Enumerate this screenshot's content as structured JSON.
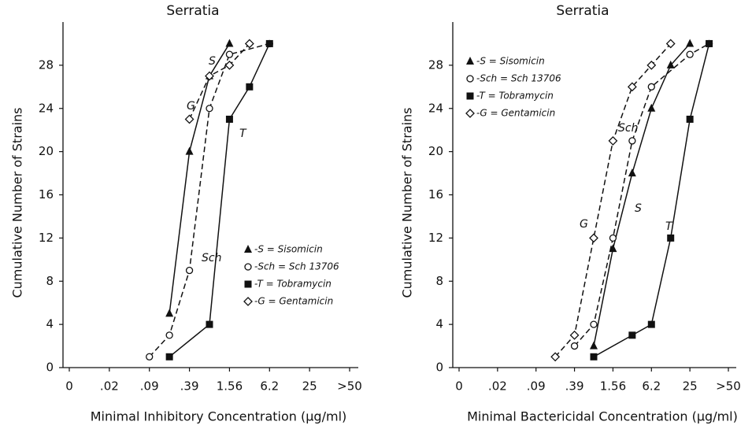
{
  "chart_data": [
    {
      "type": "line",
      "title": "Serratia",
      "xlabel": "Minimal Inhibitory Concentration (μg/ml)",
      "ylabel": "Cumulative Number of Strains",
      "xlim": [
        0,
        14
      ],
      "xticks": [
        {
          "value": 0,
          "label": "0"
        },
        {
          "value": 2,
          "label": ".02"
        },
        {
          "value": 4,
          "label": ".09"
        },
        {
          "value": 6,
          "label": ".39"
        },
        {
          "value": 8,
          "label": "1.56"
        },
        {
          "value": 10,
          "label": "6.2"
        },
        {
          "value": 12,
          "label": "25"
        },
        {
          "value": 14,
          "label": ">50"
        }
      ],
      "ylim": [
        0,
        32
      ],
      "yticks": [
        0,
        4,
        8,
        12,
        16,
        20,
        24,
        28
      ],
      "legend": "lower right",
      "series": [
        {
          "name": "-S = Sisomicin",
          "label": "S",
          "marker": "triangle",
          "dash": false,
          "color": "#111111",
          "x": [
            5,
            6,
            7,
            8
          ],
          "values": [
            5,
            20,
            27,
            30
          ]
        },
        {
          "name": "-Sch = Sch 13706",
          "label": "Sch",
          "marker": "circle",
          "dash": true,
          "color": "#111111",
          "x": [
            4,
            5,
            6,
            7,
            8,
            10
          ],
          "values": [
            1,
            3,
            9,
            24,
            29,
            30
          ]
        },
        {
          "name": "-T = Tobramycin",
          "label": "T",
          "marker": "square",
          "dash": false,
          "color": "#111111",
          "x": [
            5,
            7,
            8,
            9,
            10
          ],
          "values": [
            1,
            4,
            23,
            26,
            30
          ]
        },
        {
          "name": "-G = Gentamicin",
          "label": "G",
          "marker": "diamond",
          "dash": true,
          "color": "#111111",
          "x": [
            6,
            7,
            8,
            9
          ],
          "values": [
            23,
            27,
            28,
            30
          ]
        }
      ]
    },
    {
      "type": "line",
      "title": "Serratia",
      "xlabel": "Minimal Bactericidal Concentration (μg/ml)",
      "ylabel": "Cumulative Number of Strains",
      "xlim": [
        0,
        14
      ],
      "xticks": [
        {
          "value": 0,
          "label": "0"
        },
        {
          "value": 2,
          "label": ".02"
        },
        {
          "value": 4,
          "label": ".09"
        },
        {
          "value": 6,
          "label": ".39"
        },
        {
          "value": 8,
          "label": "1.56"
        },
        {
          "value": 10,
          "label": "6.2"
        },
        {
          "value": 12,
          "label": "25"
        },
        {
          "value": 14,
          "label": ">50"
        }
      ],
      "ylim": [
        0,
        32
      ],
      "yticks": [
        0,
        4,
        8,
        12,
        16,
        20,
        24,
        28
      ],
      "legend": "upper left",
      "series": [
        {
          "name": "-S = Sisomicin",
          "label": "S",
          "marker": "triangle",
          "dash": false,
          "color": "#111111",
          "x": [
            7,
            8,
            9,
            10,
            11,
            12
          ],
          "values": [
            2,
            11,
            18,
            24,
            28,
            30
          ]
        },
        {
          "name": "-Sch = Sch 13706",
          "label": "Sch",
          "marker": "circle",
          "dash": true,
          "color": "#111111",
          "x": [
            6,
            7,
            8,
            9,
            10,
            12,
            13
          ],
          "values": [
            2,
            4,
            12,
            21,
            26,
            29,
            30
          ]
        },
        {
          "name": "-T = Tobramycin",
          "label": "T",
          "marker": "square",
          "dash": false,
          "color": "#111111",
          "x": [
            7,
            9,
            10,
            11,
            12,
            13
          ],
          "values": [
            1,
            3,
            4,
            12,
            23,
            30
          ]
        },
        {
          "name": "-G = Gentamicin",
          "label": "G",
          "marker": "diamond",
          "dash": true,
          "color": "#111111",
          "x": [
            5,
            6,
            7,
            8,
            9,
            10,
            11
          ],
          "values": [
            1,
            3,
            12,
            21,
            26,
            28,
            30
          ]
        }
      ]
    }
  ]
}
